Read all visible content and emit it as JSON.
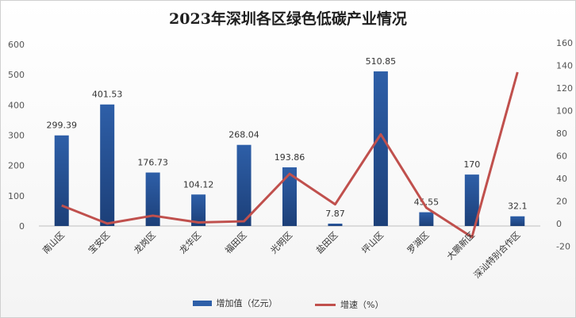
{
  "chart_data": {
    "type": "bar",
    "title": "2023年深圳各区绿色低碳产业情况",
    "categories": [
      "南山区",
      "宝安区",
      "龙岗区",
      "龙华区",
      "福田区",
      "光明区",
      "盐田区",
      "坪山区",
      "罗湖区",
      "大鹏新区",
      "深汕特别合作区"
    ],
    "y_left": {
      "ticks": [
        "0",
        "100",
        "200",
        "300",
        "400",
        "500",
        "600"
      ],
      "ylim": [
        0,
        600
      ]
    },
    "y_right": {
      "ticks": [
        "-20",
        "0",
        "20",
        "40",
        "60",
        "80",
        "100",
        "120",
        "140",
        "160"
      ],
      "ylim": [
        -20,
        160
      ]
    },
    "series": [
      {
        "name": "增加值（亿元）",
        "type": "bar",
        "axis": "left",
        "color": "#2e5fa8",
        "values": [
          299.39,
          401.53,
          176.73,
          104.12,
          268.04,
          193.86,
          7.87,
          510.85,
          45.55,
          170,
          32.1
        ],
        "labels": [
          "299.39",
          "401.53",
          "176.73",
          "104.12",
          "268.04",
          "193.86",
          "7.87",
          "510.85",
          "45.55",
          "170",
          "32.1"
        ]
      },
      {
        "name": "增速（%）",
        "type": "line",
        "axis": "right",
        "color": "#c0504d",
        "values": [
          16,
          0,
          7,
          1,
          2,
          44,
          17,
          79,
          14,
          -12,
          134
        ]
      }
    ],
    "grid": false,
    "legend": "bottom"
  }
}
